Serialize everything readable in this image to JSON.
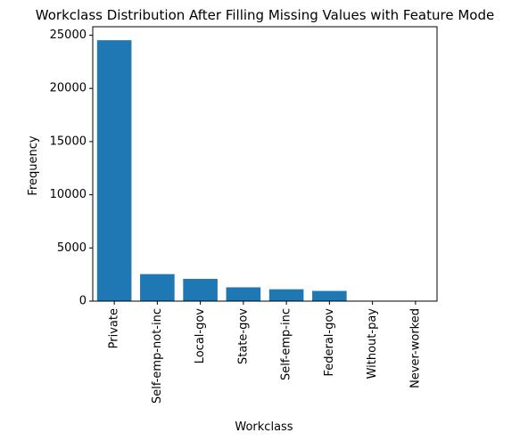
{
  "chart_data": {
    "type": "bar",
    "title": "Workclass Distribution After Filling Missing Values with Feature Mode",
    "xlabel": "Workclass",
    "ylabel": "Frequency",
    "categories": [
      "Private",
      "Self-emp-not-inc",
      "Local-gov",
      "State-gov",
      "Self-emp-inc",
      "Federal-gov",
      "Without-pay",
      "Never-worked"
    ],
    "values": [
      24532,
      2541,
      2093,
      1298,
      1116,
      960,
      14,
      7
    ],
    "ylim": [
      0,
      25800
    ],
    "yticks": [
      0,
      5000,
      10000,
      15000,
      20000,
      25000
    ],
    "ytick_labels": [
      "0",
      "5000",
      "10000",
      "15000",
      "20000",
      "25000"
    ],
    "bar_color": "#1f77b4",
    "grid": false,
    "legend": "none"
  }
}
